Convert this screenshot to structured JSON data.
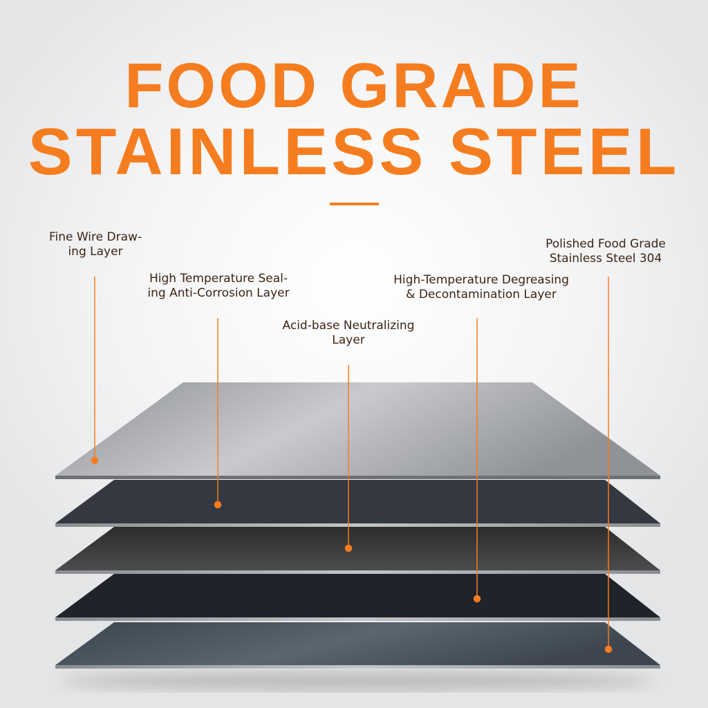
{
  "title": {
    "line1": "FOOD GRADE",
    "line2": "STAINLESS STEEL"
  },
  "accent_color": "#f57d1f",
  "layers": [
    {
      "label_line1": "Fine Wire Draw-",
      "label_line2": "ing Layer",
      "color": "#9a9ca0"
    },
    {
      "label_line1": "High Temperature Seal-",
      "label_line2": "ing Anti-Corrosion Layer",
      "color": "#33373f"
    },
    {
      "label_line1": "Acid-base Neutralizing",
      "label_line2": "Layer",
      "color": "#404040"
    },
    {
      "label_line1": "High-Temperature Degreasing",
      "label_line2": "& Decontamination Layer",
      "color": "#1e2128"
    },
    {
      "label_line1": "Polished Food Grade",
      "label_line2": "Stainless Steel 304",
      "color": "#4a5560"
    }
  ]
}
